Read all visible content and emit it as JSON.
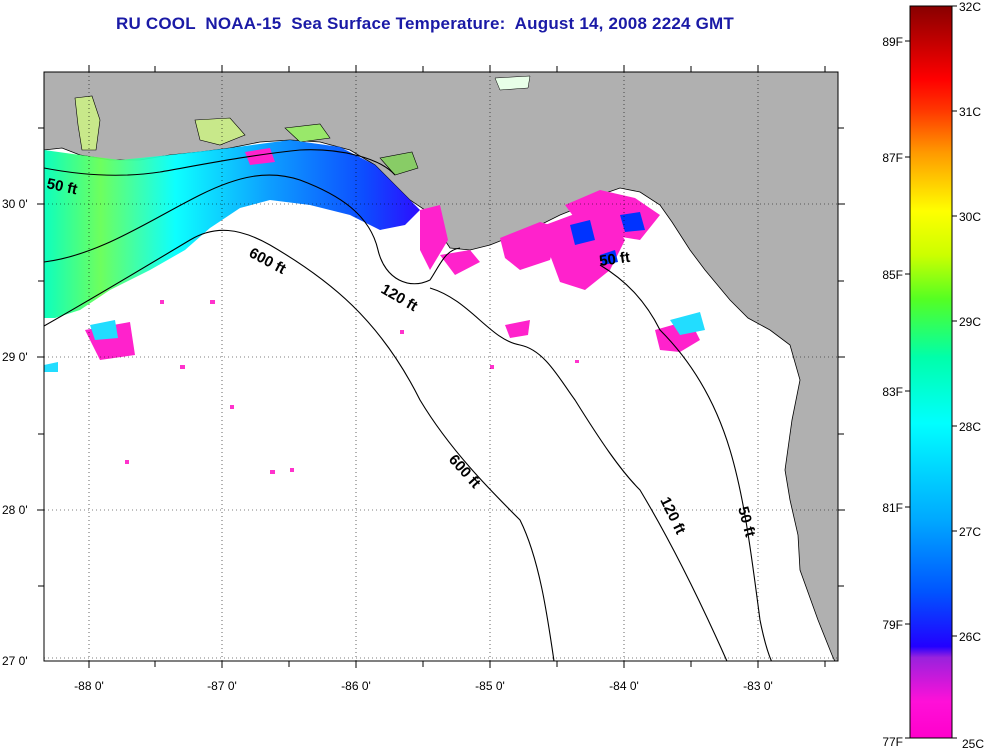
{
  "title": "RU COOL  NOAA-15  Sea Surface Temperature:  August 14, 2008 2224 GMT",
  "map": {
    "lon_ticks": [
      "-88 0'",
      "-87 0'",
      "-86 0'",
      "-85 0'",
      "-84 0'",
      "-83 0'"
    ],
    "lat_ticks": [
      "30 0'",
      "29 0'",
      "28 0'",
      "27 0'"
    ],
    "contour_labels": [
      "50 ft",
      "600 ft",
      "120 ft",
      "50 ft",
      "600 ft",
      "120 ft",
      "50 ft"
    ],
    "colors": {
      "land": "#b0b0b0",
      "water_nodata": "#ffffff"
    }
  },
  "colorbar": {
    "celsius": [
      "32C",
      "31C",
      "30C",
      "29C",
      "28C",
      "27C",
      "26C",
      "25C"
    ],
    "fahrenheit": [
      "89F",
      "87F",
      "85F",
      "83F",
      "81F",
      "79F",
      "77F"
    ]
  }
}
